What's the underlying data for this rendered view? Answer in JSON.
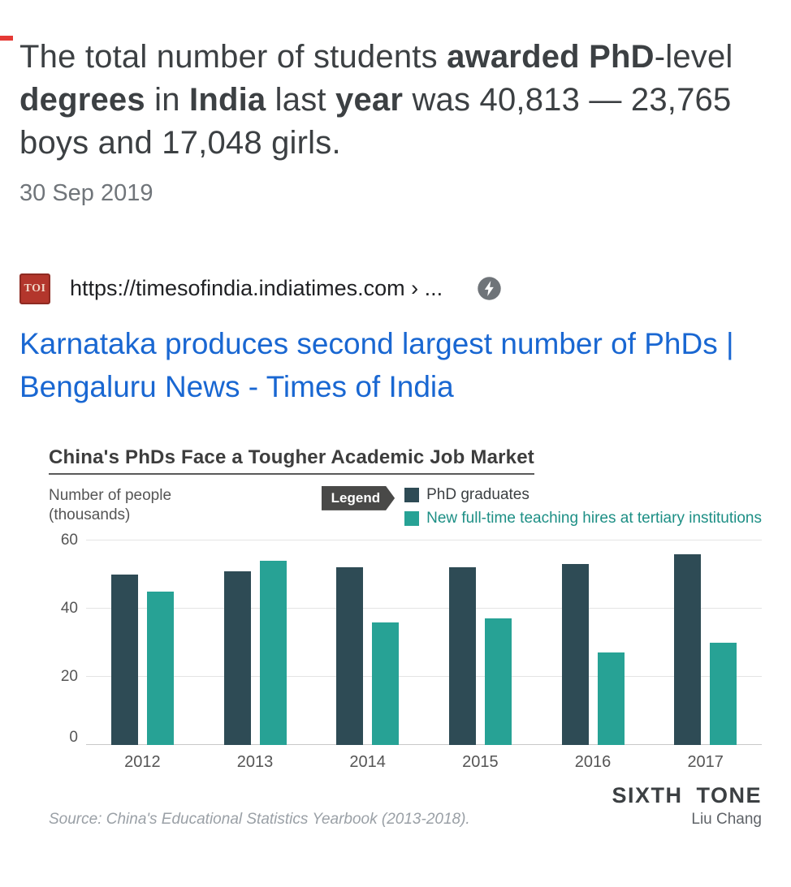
{
  "snippet": {
    "segments": [
      {
        "t": "The total number of students "
      },
      {
        "t": "awarded",
        "b": 1
      },
      {
        "t": " "
      },
      {
        "t": "PhD",
        "b": 1
      },
      {
        "t": "-level "
      },
      {
        "t": "degrees",
        "b": 1
      },
      {
        "t": " in "
      },
      {
        "t": "India",
        "b": 1
      },
      {
        "t": " last "
      },
      {
        "t": "year",
        "b": 1
      },
      {
        "t": " was 40,813 — 23,765 boys and 17,048 girls."
      }
    ],
    "date": "30 Sep 2019"
  },
  "result": {
    "favicon_text": "TOI",
    "url": "https://timesofindia.indiatimes.com › ...",
    "amp_icon": "amp-lightning-icon",
    "title": "Karnataka produces second largest number of PhDs | Bengaluru News - Times of India"
  },
  "chart_data": {
    "type": "bar",
    "title": "China's PhDs Face a Tougher Academic Job Market",
    "ylabel_line1": "Number of people",
    "ylabel_line2": "(thousands)",
    "legend_label": "Legend",
    "categories": [
      "2012",
      "2013",
      "2014",
      "2015",
      "2016",
      "2017"
    ],
    "series": [
      {
        "name": "PhD graduates",
        "color": "#2e4b55",
        "values": [
          50,
          51,
          52,
          52,
          53,
          56
        ]
      },
      {
        "name": "New full-time teaching hires at tertiary institutions",
        "color": "#27a295",
        "values": [
          45,
          54,
          36,
          37,
          27,
          30
        ]
      }
    ],
    "ylim": [
      0,
      60
    ],
    "yticks": [
      0,
      20,
      40,
      60
    ],
    "grid": true,
    "legend_position": "top-right",
    "source": "Source: China's Educational Statistics Yearbook (2013-2018).",
    "branding_name": "SIXTH TONE",
    "branding_credit": "Liu Chang"
  }
}
